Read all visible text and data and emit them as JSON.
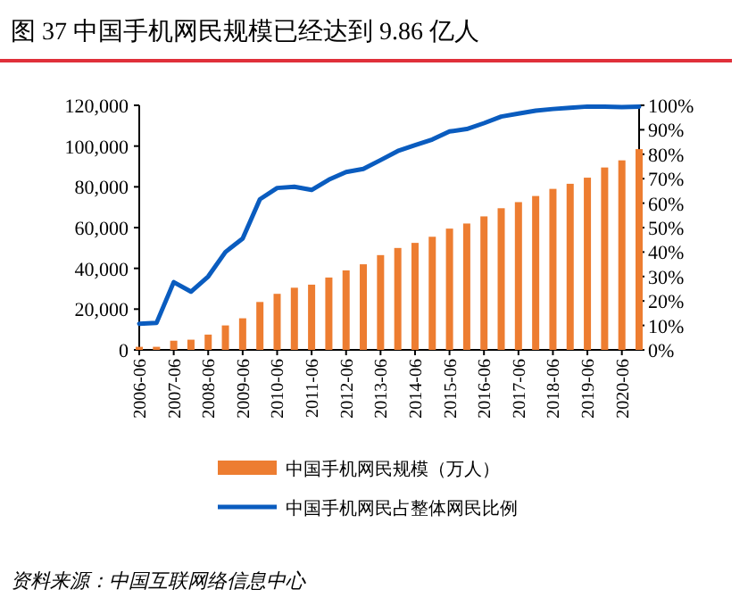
{
  "chart_data": {
    "type": "bar",
    "title": "图 37  中国手机网民规模已经达到 9.86 亿人",
    "categories": [
      "2006-06",
      null,
      "2007-06",
      null,
      "2008-06",
      null,
      "2009-06",
      null,
      "2010-06",
      null,
      "2011-06",
      null,
      "2012-06",
      null,
      "2013-06",
      null,
      "2014-06",
      null,
      "2015-06",
      null,
      "2016-06",
      null,
      "2017-06",
      null,
      "2018-06",
      null,
      "2019-06",
      null,
      "2020-06",
      null
    ],
    "series": [
      {
        "name": "中国手机网民规模（万人）",
        "color": "#ed7d31",
        "values": [
          1500,
          1500,
          4500,
          5000,
          7500,
          12000,
          15500,
          23500,
          27500,
          30500,
          32000,
          35500,
          39000,
          42000,
          46500,
          50000,
          52500,
          55500,
          59500,
          62000,
          65500,
          69500,
          72500,
          75500,
          79000,
          81500,
          84500,
          89500,
          93000,
          98500
        ]
      },
      {
        "name": "中国手机网民占整体网民比例",
        "type": "line",
        "axis": "y2",
        "color": "#0a5cbf",
        "values": [
          10.7,
          11,
          27.7,
          23.8,
          30,
          40,
          45.5,
          61.6,
          66.2,
          66.7,
          65.4,
          69.6,
          72.7,
          74,
          77.6,
          81.3,
          83.7,
          86,
          89.3,
          90.3,
          92.7,
          95.4,
          96.6,
          97.8,
          98.5,
          99,
          99.5,
          99.5,
          99.3,
          99.5
        ]
      }
    ],
    "ylim": [
      0,
      120000
    ],
    "yticks": [
      {
        "value": 0,
        "label": "0"
      },
      {
        "value": 20000,
        "label": "20,000"
      },
      {
        "value": 40000,
        "label": "40,000"
      },
      {
        "value": 60000,
        "label": "60,000"
      },
      {
        "value": 80000,
        "label": "80,000"
      },
      {
        "value": 100000,
        "label": "100,000"
      },
      {
        "value": 120000,
        "label": "120,000"
      }
    ],
    "y2lim": [
      0,
      100
    ],
    "y2ticks": [
      {
        "value": 0,
        "label": "0%"
      },
      {
        "value": 10,
        "label": "10%"
      },
      {
        "value": 20,
        "label": "20%"
      },
      {
        "value": 30,
        "label": "30%"
      },
      {
        "value": 40,
        "label": "40%"
      },
      {
        "value": 50,
        "label": "50%"
      },
      {
        "value": 60,
        "label": "60%"
      },
      {
        "value": 70,
        "label": "70%"
      },
      {
        "value": 80,
        "label": "80%"
      },
      {
        "value": 90,
        "label": "90%"
      },
      {
        "value": 100,
        "label": "100%"
      }
    ],
    "legend": "bottom",
    "annotations": [
      "资料来源：中国互联网络信息中心"
    ]
  }
}
